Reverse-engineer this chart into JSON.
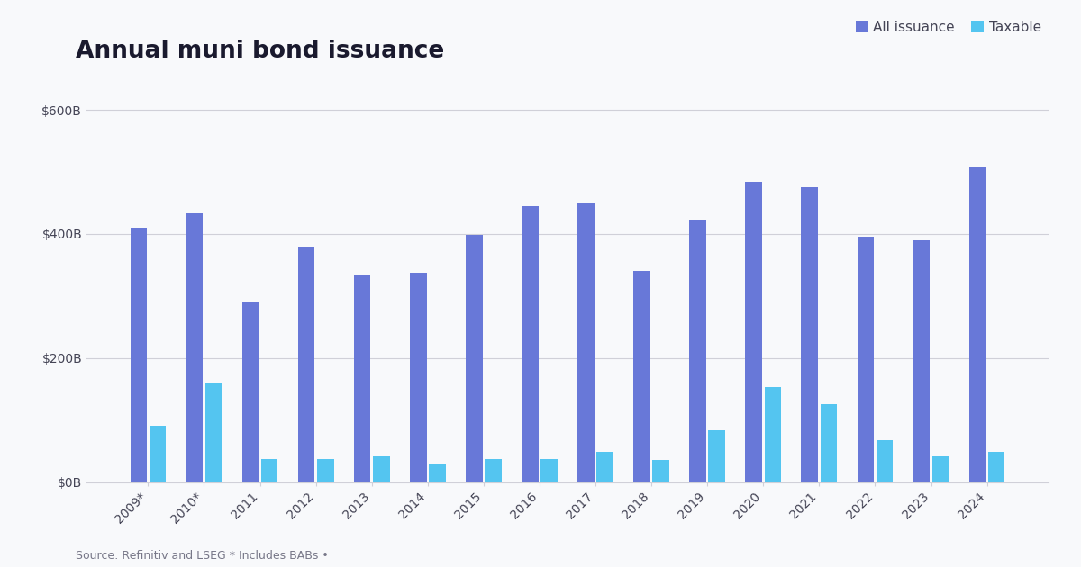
{
  "title": "Annual muni bond issuance",
  "source_text": "Source: Refinitiv and LSEG * Includes BABs •",
  "years": [
    "2009*",
    "2010*",
    "2011",
    "2012",
    "2013",
    "2014",
    "2015",
    "2016",
    "2017",
    "2018",
    "2019",
    "2020",
    "2021",
    "2022",
    "2023",
    "2024"
  ],
  "all_issuance": [
    410,
    433,
    290,
    379,
    335,
    338,
    398,
    445,
    449,
    340,
    423,
    484,
    475,
    395,
    390,
    507
  ],
  "taxable": [
    90,
    160,
    37,
    37,
    42,
    30,
    37,
    37,
    48,
    35,
    83,
    153,
    125,
    67,
    42,
    48
  ],
  "all_issuance_color": "#6878d8",
  "taxable_color": "#54c5f0",
  "background_color": "#f8f9fb",
  "grid_color": "#d0d0d8",
  "title_fontsize": 19,
  "tick_fontsize": 10,
  "legend_fontsize": 11,
  "ylim": [
    0,
    640
  ],
  "yticks": [
    0,
    200,
    400,
    600
  ],
  "ytick_labels": [
    "$0B",
    "$200B",
    "$400B",
    "$600B"
  ],
  "bar_width": 0.3,
  "bar_gap": 0.04
}
